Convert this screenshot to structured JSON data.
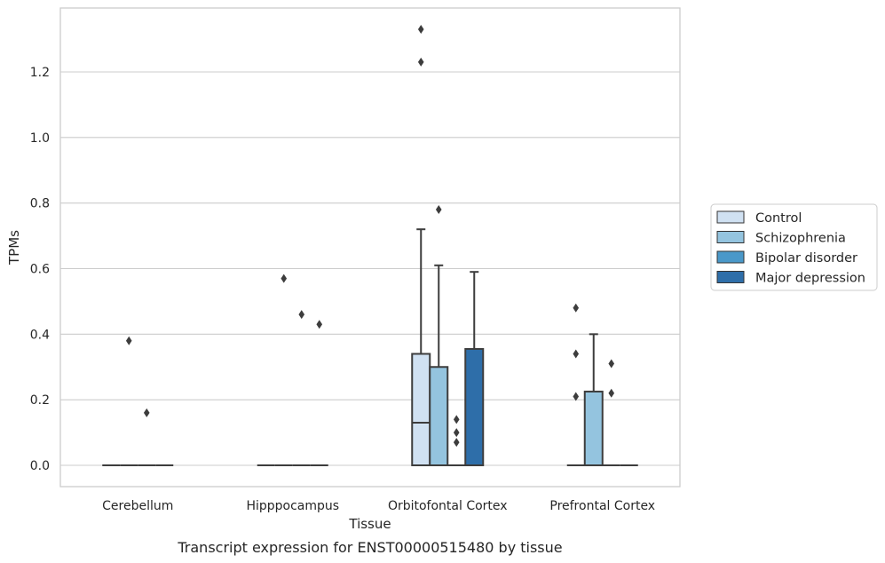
{
  "chart_data": {
    "type": "box",
    "caption": "Transcript expression for ENST00000515480 by tissue",
    "xlabel": "Tissue",
    "ylabel": "TPMs",
    "ylim": [
      -0.065,
      1.395
    ],
    "yticks": [
      0.0,
      0.2,
      0.4,
      0.6,
      0.8,
      1.0,
      1.2
    ],
    "ytick_labels": [
      "0.0",
      "0.2",
      "0.4",
      "0.6",
      "0.8",
      "1.0",
      "1.2"
    ],
    "grid": "horizontal",
    "legend_position": "right",
    "categories": [
      "Cerebellum",
      "Hipppocampus",
      "Orbitofontal Cortex",
      "Prefrontal Cortex"
    ],
    "series": [
      {
        "name": "Control",
        "color": "#d0e1f2",
        "boxes": [
          {
            "q1": 0,
            "median": 0,
            "q3": 0,
            "whisker_low": 0,
            "whisker_high": 0,
            "fliers": []
          },
          {
            "q1": 0,
            "median": 0,
            "q3": 0,
            "whisker_low": 0,
            "whisker_high": 0,
            "fliers": []
          },
          {
            "q1": 0,
            "median": 0.13,
            "q3": 0.34,
            "whisker_low": 0,
            "whisker_high": 0.72,
            "fliers": [
              1.23,
              1.33
            ]
          },
          {
            "q1": 0,
            "median": 0,
            "q3": 0,
            "whisker_low": 0,
            "whisker_high": 0,
            "fliers": [
              0.48,
              0.34,
              0.21
            ]
          }
        ]
      },
      {
        "name": "Schizophrenia",
        "color": "#94c4df",
        "boxes": [
          {
            "q1": 0,
            "median": 0,
            "q3": 0,
            "whisker_low": 0,
            "whisker_high": 0,
            "fliers": [
              0.38
            ]
          },
          {
            "q1": 0,
            "median": 0,
            "q3": 0,
            "whisker_low": 0,
            "whisker_high": 0,
            "fliers": [
              0.57
            ]
          },
          {
            "q1": 0,
            "median": 0,
            "q3": 0.3,
            "whisker_low": 0,
            "whisker_high": 0.61,
            "fliers": [
              0.78
            ]
          },
          {
            "q1": 0,
            "median": 0,
            "q3": 0.225,
            "whisker_low": 0,
            "whisker_high": 0.4,
            "fliers": []
          }
        ]
      },
      {
        "name": "Bipolar disorder",
        "color": "#4a98c9",
        "boxes": [
          {
            "q1": 0,
            "median": 0,
            "q3": 0,
            "whisker_low": 0,
            "whisker_high": 0,
            "fliers": [
              0.16
            ]
          },
          {
            "q1": 0,
            "median": 0,
            "q3": 0,
            "whisker_low": 0,
            "whisker_high": 0,
            "fliers": [
              0.46
            ]
          },
          {
            "q1": 0,
            "median": 0,
            "q3": 0,
            "whisker_low": 0,
            "whisker_high": 0,
            "fliers": [
              0.14,
              0.1,
              0.07
            ]
          },
          {
            "q1": 0,
            "median": 0,
            "q3": 0,
            "whisker_low": 0,
            "whisker_high": 0,
            "fliers": [
              0.31,
              0.22
            ]
          }
        ]
      },
      {
        "name": "Major depression",
        "color": "#2e6ea9",
        "boxes": [
          {
            "q1": 0,
            "median": 0,
            "q3": 0,
            "whisker_low": 0,
            "whisker_high": 0,
            "fliers": []
          },
          {
            "q1": 0,
            "median": 0,
            "q3": 0,
            "whisker_low": 0,
            "whisker_high": 0,
            "fliers": [
              0.43
            ]
          },
          {
            "q1": 0,
            "median": 0,
            "q3": 0.355,
            "whisker_low": 0,
            "whisker_high": 0.59,
            "fliers": []
          },
          {
            "q1": 0,
            "median": 0,
            "q3": 0,
            "whisker_low": 0,
            "whisker_high": 0,
            "fliers": []
          }
        ]
      }
    ]
  }
}
